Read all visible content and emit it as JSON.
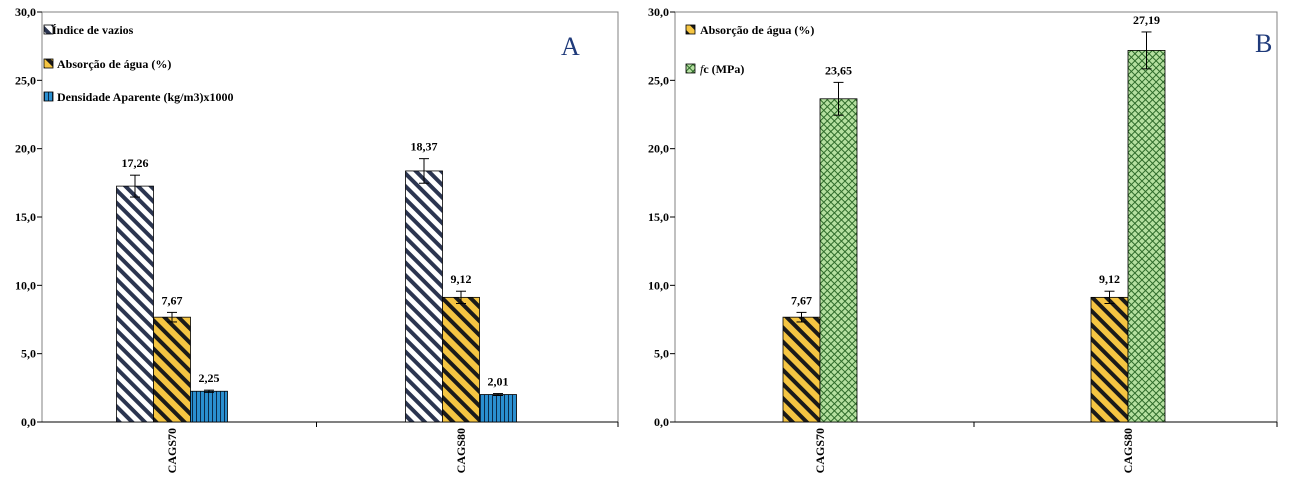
{
  "chart_data": [
    {
      "type": "bar",
      "panel_label": "A",
      "categories": [
        "CAGS70",
        "CAGS80"
      ],
      "ylim": [
        0,
        30
      ],
      "yticks": [
        "0,0",
        "5,0",
        "10,0",
        "15,0",
        "20,0",
        "25,0",
        "30,0"
      ],
      "ytick_values": [
        0,
        5,
        10,
        15,
        20,
        25,
        30
      ],
      "legend_placement": "top-left",
      "series": [
        {
          "name": "Índice de vazios",
          "values": [
            17.26,
            18.37
          ],
          "errors": [
            0.8,
            0.9
          ],
          "labels": [
            "17,26",
            "18,37"
          ],
          "pattern": "diag-white",
          "color": "#1f2a44"
        },
        {
          "name": "Absorção de água (%)",
          "values": [
            7.67,
            9.12
          ],
          "errors": [
            0.35,
            0.45
          ],
          "labels": [
            "7,67",
            "9,12"
          ],
          "pattern": "diag-yellow",
          "color": "#f5c542"
        },
        {
          "name": "Densidade Aparente (kg/m3)x1000",
          "values": [
            2.25,
            2.01
          ],
          "errors": [
            0.08,
            0.07
          ],
          "labels": [
            "2,25",
            "2,01"
          ],
          "pattern": "vert-blue",
          "color": "#2a8fd0"
        }
      ]
    },
    {
      "type": "bar",
      "panel_label": "B",
      "categories": [
        "CAGS70",
        "CAGS80"
      ],
      "ylim": [
        0,
        30
      ],
      "yticks": [
        "0,0",
        "5,0",
        "10,0",
        "15,0",
        "20,0",
        "25,0",
        "30,0"
      ],
      "ytick_values": [
        0,
        5,
        10,
        15,
        20,
        25,
        30
      ],
      "legend_placement": "top-left",
      "series": [
        {
          "name": "Absorção de água (%)",
          "values": [
            7.67,
            9.12
          ],
          "errors": [
            0.35,
            0.45
          ],
          "labels": [
            "7,67",
            "9,12"
          ],
          "pattern": "diag-yellow",
          "color": "#f5c542"
        },
        {
          "name": "fc (MPa)",
          "values": [
            23.65,
            27.19
          ],
          "errors": [
            1.2,
            1.35
          ],
          "labels": [
            "23,65",
            "27,19"
          ],
          "pattern": "cross-green",
          "color": "#9fd08a"
        }
      ]
    }
  ]
}
